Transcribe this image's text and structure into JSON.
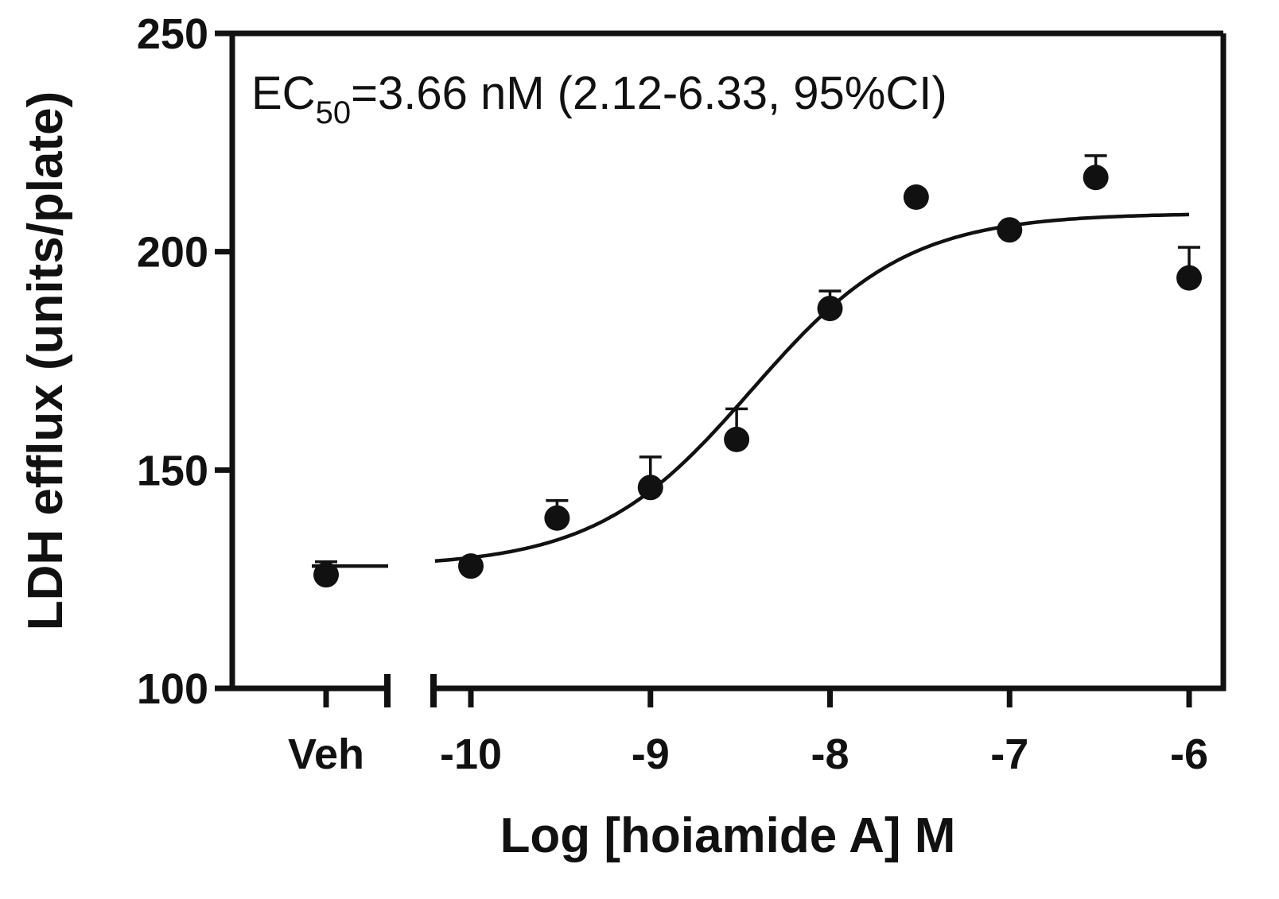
{
  "chart_data": {
    "type": "scatter",
    "title": "",
    "xlabel": "Log [hoiamide A] M",
    "ylabel": "LDH efflux (units/plate)",
    "ylim": [
      100,
      250
    ],
    "xlim": [
      -10.8,
      -5.95
    ],
    "yticks": [
      100,
      150,
      200,
      250
    ],
    "xticks": [
      {
        "value": -10,
        "label": "-10"
      },
      {
        "value": -9,
        "label": "-9"
      },
      {
        "value": -8,
        "label": "-8"
      },
      {
        "value": -7,
        "label": "-7"
      },
      {
        "value": -6,
        "label": "-6"
      }
    ],
    "vehicle": {
      "label": "Veh",
      "y": 126,
      "error": 3,
      "fit_y": 128
    },
    "points": [
      {
        "x": -10.0,
        "y": 128.0,
        "error": 0
      },
      {
        "x": -9.52,
        "y": 139.0,
        "error": 4
      },
      {
        "x": -9.0,
        "y": 146.0,
        "error": 7
      },
      {
        "x": -8.52,
        "y": 157.0,
        "error": 7
      },
      {
        "x": -8.0,
        "y": 187.0,
        "error": 4
      },
      {
        "x": -7.52,
        "y": 212.5,
        "error": 0
      },
      {
        "x": -7.0,
        "y": 205.0,
        "error": 0
      },
      {
        "x": -6.52,
        "y": 217.0,
        "error": 5
      },
      {
        "x": -6.0,
        "y": 194.0,
        "error": 7
      }
    ],
    "fit": {
      "bottom": 127.8,
      "top": 208.8,
      "log_ec50": -8.437,
      "hill": 1.0,
      "x_range": [
        -10.2,
        -6.0
      ]
    },
    "annotation": {
      "prefix": "EC",
      "subscript": "50",
      "suffix": "=3.66 nM (2.12-6.33, 95%CI)"
    },
    "grid": false,
    "legend": "none"
  }
}
